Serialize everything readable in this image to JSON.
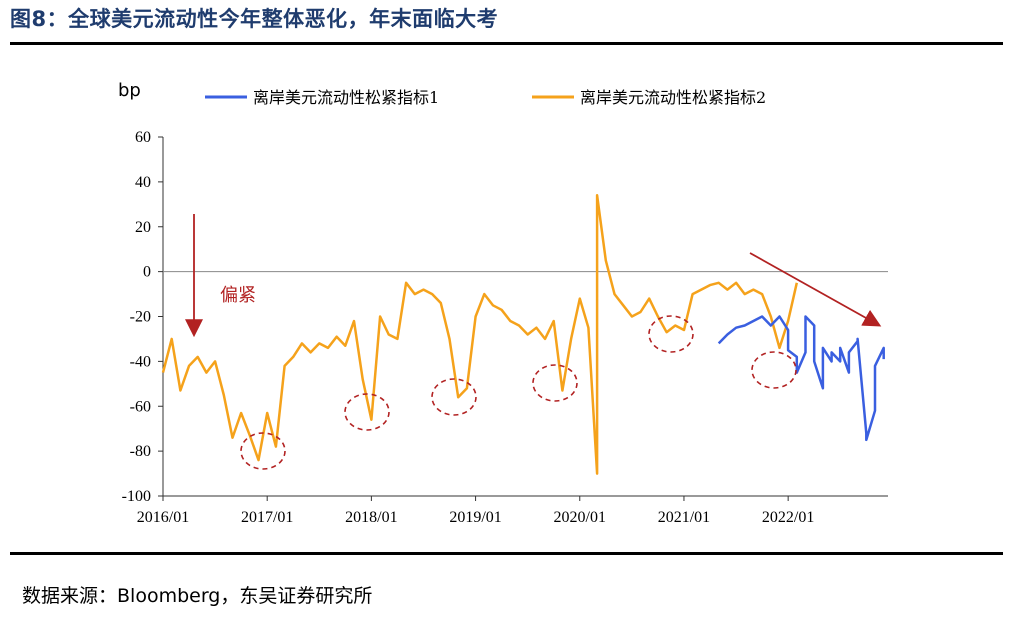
{
  "figure": {
    "title": "图8：全球美元流动性今年整体恶化，年末面临大考",
    "source": "数据来源：Bloomberg，东吴证券研究所"
  },
  "chart_data": {
    "type": "line",
    "ylabel": "bp",
    "ylim": [
      -100,
      60
    ],
    "yticks": [
      60,
      40,
      20,
      0,
      -20,
      -40,
      -60,
      -80,
      -100
    ],
    "x_tick_labels": [
      "2016/01",
      "2017/01",
      "2018/01",
      "2019/01",
      "2020/01",
      "2021/01",
      "2022/01"
    ],
    "x_range": [
      "2016/01",
      "2022/12"
    ],
    "grid": false,
    "legend_placement": "top",
    "annotations": {
      "text_label": "偏紧",
      "arrow_1": "down arrow above the 2016 trough",
      "arrow_2": "downward trend arrow from 2022 to 2022/12",
      "circles": "dashed ellipses marking the year-end tightening dips"
    },
    "series": [
      {
        "name": "离岸美元流动性松紧指标1",
        "color": "#3a5fe0",
        "points": [
          [
            "2021/05",
            -32
          ],
          [
            "2021/06",
            -28
          ],
          [
            "2021/07",
            -25
          ],
          [
            "2021/08",
            -24
          ],
          [
            "2021/09",
            -22
          ],
          [
            "2021/10",
            -20
          ],
          [
            "2021/11",
            -24
          ],
          [
            "2021/12",
            -20
          ],
          [
            "2022/01",
            -26
          ],
          [
            "2022/01",
            -35
          ],
          [
            "2022/02",
            -38
          ],
          [
            "2022/02",
            -45
          ],
          [
            "2022/03",
            -36
          ],
          [
            "2022/03",
            -20
          ],
          [
            "2022/04",
            -24
          ],
          [
            "2022/04",
            -40
          ],
          [
            "2022/05",
            -52
          ],
          [
            "2022/05",
            -34
          ],
          [
            "2022/06",
            -40
          ],
          [
            "2022/06",
            -36
          ],
          [
            "2022/07",
            -40
          ],
          [
            "2022/07",
            -34
          ],
          [
            "2022/08",
            -45
          ],
          [
            "2022/08",
            -36
          ],
          [
            "2022/09",
            -31
          ],
          [
            "2022/09",
            -30
          ],
          [
            "2022/10",
            -72
          ],
          [
            "2022/10",
            -75
          ],
          [
            "2022/11",
            -62
          ],
          [
            "2022/11",
            -42
          ],
          [
            "2022/12",
            -34
          ],
          [
            "2022/12",
            -39
          ]
        ]
      },
      {
        "name": "离岸美元流动性松紧指标2",
        "color": "#f5a21b",
        "points": [
          [
            "2016/01",
            -45
          ],
          [
            "2016/02",
            -30
          ],
          [
            "2016/03",
            -53
          ],
          [
            "2016/04",
            -42
          ],
          [
            "2016/05",
            -38
          ],
          [
            "2016/06",
            -45
          ],
          [
            "2016/07",
            -40
          ],
          [
            "2016/08",
            -55
          ],
          [
            "2016/09",
            -74
          ],
          [
            "2016/10",
            -63
          ],
          [
            "2016/11",
            -73
          ],
          [
            "2016/12",
            -84
          ],
          [
            "2017/01",
            -63
          ],
          [
            "2017/02",
            -78
          ],
          [
            "2017/03",
            -42
          ],
          [
            "2017/04",
            -38
          ],
          [
            "2017/05",
            -32
          ],
          [
            "2017/06",
            -36
          ],
          [
            "2017/07",
            -32
          ],
          [
            "2017/08",
            -34
          ],
          [
            "2017/09",
            -29
          ],
          [
            "2017/10",
            -33
          ],
          [
            "2017/11",
            -22
          ],
          [
            "2017/12",
            -48
          ],
          [
            "2018/01",
            -66
          ],
          [
            "2018/02",
            -20
          ],
          [
            "2018/03",
            -28
          ],
          [
            "2018/04",
            -30
          ],
          [
            "2018/05",
            -5
          ],
          [
            "2018/06",
            -10
          ],
          [
            "2018/07",
            -8
          ],
          [
            "2018/08",
            -10
          ],
          [
            "2018/09",
            -14
          ],
          [
            "2018/10",
            -30
          ],
          [
            "2018/11",
            -56
          ],
          [
            "2018/12",
            -52
          ],
          [
            "2019/01",
            -20
          ],
          [
            "2019/02",
            -10
          ],
          [
            "2019/03",
            -15
          ],
          [
            "2019/04",
            -17
          ],
          [
            "2019/05",
            -22
          ],
          [
            "2019/06",
            -24
          ],
          [
            "2019/07",
            -28
          ],
          [
            "2019/08",
            -25
          ],
          [
            "2019/09",
            -30
          ],
          [
            "2019/10",
            -22
          ],
          [
            "2019/11",
            -53
          ],
          [
            "2019/12",
            -30
          ],
          [
            "2020/01",
            -12
          ],
          [
            "2020/02",
            -25
          ],
          [
            "2020/03",
            -90
          ],
          [
            "2020/03",
            34
          ],
          [
            "2020/04",
            5
          ],
          [
            "2020/05",
            -10
          ],
          [
            "2020/06",
            -15
          ],
          [
            "2020/07",
            -20
          ],
          [
            "2020/08",
            -18
          ],
          [
            "2020/09",
            -12
          ],
          [
            "2020/10",
            -20
          ],
          [
            "2020/11",
            -27
          ],
          [
            "2020/12",
            -24
          ],
          [
            "2021/01",
            -26
          ],
          [
            "2021/02",
            -10
          ],
          [
            "2021/03",
            -8
          ],
          [
            "2021/04",
            -6
          ],
          [
            "2021/05",
            -5
          ],
          [
            "2021/06",
            -8
          ],
          [
            "2021/07",
            -5
          ],
          [
            "2021/08",
            -10
          ],
          [
            "2021/09",
            -8
          ],
          [
            "2021/10",
            -10
          ],
          [
            "2021/11",
            -20
          ],
          [
            "2021/12",
            -34
          ],
          [
            "2022/01",
            -22
          ],
          [
            "2022/02",
            -5
          ]
        ]
      }
    ]
  }
}
